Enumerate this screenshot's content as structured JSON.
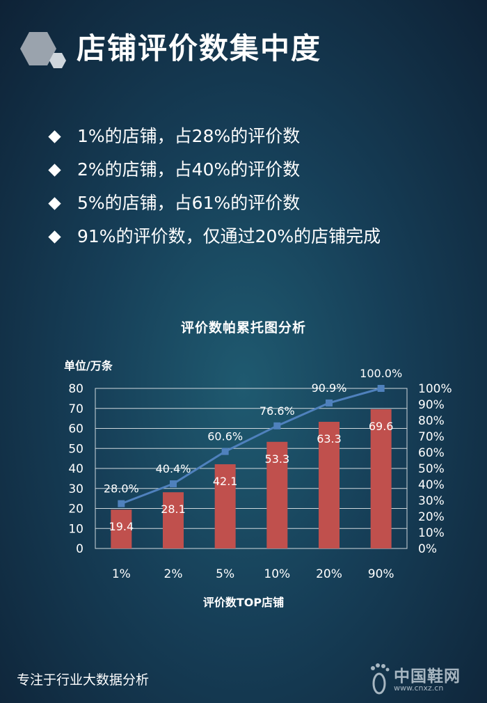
{
  "title": "店铺评价数集中度",
  "bullets": [
    "1%的店铺，占28%的评价数",
    "2%的店铺，占40%的评价数",
    "5%的店铺，占61%的评价数",
    "91%的评价数，仅通过20%的店铺完成"
  ],
  "footer": "专注于行业大数据分析",
  "watermark": {
    "name": "中国鞋网",
    "url": "www.cnxz.cn"
  },
  "colors": {
    "bar": "#c0504d",
    "line": "#4f81bd",
    "grid": "#d0d8dd"
  },
  "chart_data": {
    "type": "bar",
    "title": "评价数帕累托图分析",
    "ylabel": "单位/万条",
    "xlabel": "评价数TOP店铺",
    "categories": [
      "1%",
      "2%",
      "5%",
      "10%",
      "20%",
      "90%"
    ],
    "series": [
      {
        "type": "bar",
        "axis": "left",
        "values": [
          19.4,
          28.1,
          42.1,
          53.3,
          63.3,
          69.6
        ],
        "labels": [
          "19.4",
          "28.1",
          "42.1",
          "53.3",
          "63.3",
          "69.6"
        ]
      },
      {
        "type": "line",
        "axis": "right",
        "values": [
          28.0,
          40.4,
          60.6,
          76.6,
          90.9,
          100.0
        ],
        "labels": [
          "28.0%",
          "40.4%",
          "60.6%",
          "76.6%",
          "90.9%",
          "100.0%"
        ]
      }
    ],
    "ylim": [
      0,
      80
    ],
    "yticks": [
      "0",
      "10",
      "20",
      "30",
      "40",
      "50",
      "60",
      "70",
      "80"
    ],
    "y2lim": [
      0,
      100
    ],
    "y2ticks": [
      "0%",
      "10%",
      "20%",
      "30%",
      "40%",
      "50%",
      "60%",
      "70%",
      "80%",
      "90%",
      "100%"
    ],
    "grid": true,
    "legend": "none"
  }
}
